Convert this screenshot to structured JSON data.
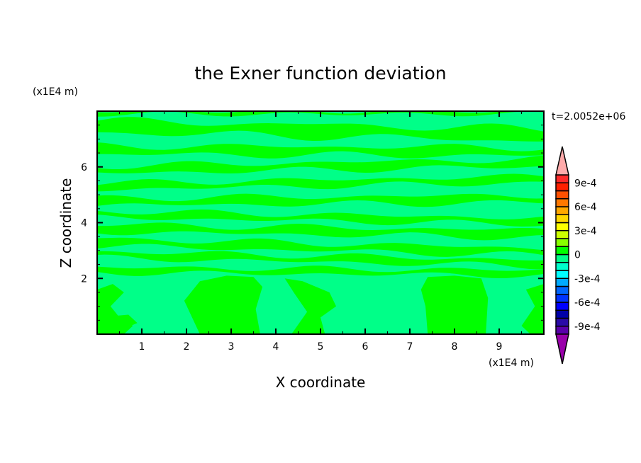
{
  "chart_data": {
    "type": "heatmap",
    "title": "the Exner function deviation",
    "xlabel": "X coordinate",
    "ylabel": "Z coordinate",
    "x_unit": "(x1E4 m)",
    "y_unit": "(x1E4 m)",
    "time_label": "t=2.0052e+06",
    "xlim": [
      0,
      10
    ],
    "ylim": [
      0,
      8
    ],
    "x_ticks": [
      1,
      2,
      3,
      4,
      5,
      6,
      7,
      8,
      9
    ],
    "y_ticks": [
      2,
      4,
      6
    ],
    "background_level": "-1e-4 to 0",
    "colorbar": {
      "levels": [
        -0.001,
        -0.0009,
        -0.0008,
        -0.0007,
        -0.0006,
        -0.0005,
        -0.0004,
        -0.0003,
        -0.0002,
        -0.0001,
        0,
        0.0001,
        0.0002,
        0.0003,
        0.0004,
        0.0005,
        0.0006,
        0.0007,
        0.0008,
        0.0009,
        0.001
      ],
      "colors": [
        "#5a00aa",
        "#2a0aa8",
        "#0000a8",
        "#0000ff",
        "#0033ff",
        "#0066ff",
        "#00aaff",
        "#00ffff",
        "#00ffcc",
        "#00ff88",
        "#00ff00",
        "#88ff00",
        "#ccff00",
        "#ffff00",
        "#ffd800",
        "#ffa800",
        "#ff7800",
        "#ff5000",
        "#ff2000",
        "#ff2a2a"
      ],
      "over_color": "#ffaaaa",
      "under_color": "#9900aa",
      "tick_labels": [
        {
          "value": 0.0009,
          "label": "9e-4"
        },
        {
          "value": 0.0006,
          "label": "6e-4"
        },
        {
          "value": 0.0003,
          "label": "3e-4"
        },
        {
          "value": 0,
          "label": "0"
        },
        {
          "value": -0.0003,
          "label": "-3e-4"
        },
        {
          "value": -0.0006,
          "label": "-6e-4"
        },
        {
          "value": -0.0009,
          "label": "-9e-4"
        }
      ]
    },
    "positive_bands": [
      {
        "z_left": 7.45,
        "z_right": 7.15,
        "width": 0.55
      },
      {
        "z_left": 6.6,
        "z_right": 6.55,
        "width": 0.4
      },
      {
        "z_left": 5.9,
        "z_right": 6.15,
        "width": 0.35
      },
      {
        "z_left": 5.3,
        "z_right": 5.55,
        "width": 0.3
      },
      {
        "z_left": 4.75,
        "z_right": 4.85,
        "width": 0.35
      },
      {
        "z_left": 4.3,
        "z_right": 4.05,
        "width": 0.3
      },
      {
        "z_left": 3.8,
        "z_right": 3.6,
        "width": 0.35
      },
      {
        "z_left": 3.3,
        "z_right": 2.95,
        "width": 0.35
      },
      {
        "z_left": 2.85,
        "z_right": 2.55,
        "width": 0.3
      },
      {
        "z_left": 2.3,
        "z_right": 2.2,
        "width": 0.25
      },
      {
        "z_left": 7.95,
        "z_right": 7.95,
        "width": 0.15
      }
    ],
    "positive_blobs": [
      [
        [
          2.3,
          0
        ],
        [
          1.95,
          1.2
        ],
        [
          2.3,
          1.9
        ],
        [
          2.9,
          2.1
        ],
        [
          3.5,
          2.05
        ],
        [
          3.7,
          1.7
        ],
        [
          3.55,
          0.9
        ],
        [
          3.65,
          0
        ]
      ],
      [
        [
          7.4,
          0
        ],
        [
          7.35,
          1.0
        ],
        [
          7.25,
          1.6
        ],
        [
          7.4,
          2.05
        ],
        [
          8.0,
          2.1
        ],
        [
          8.6,
          2.0
        ],
        [
          8.75,
          1.3
        ],
        [
          8.7,
          0
        ]
      ],
      [
        [
          0,
          0
        ],
        [
          0,
          1.6
        ],
        [
          0.35,
          1.8
        ],
        [
          0.6,
          1.5
        ],
        [
          0.3,
          1.0
        ],
        [
          0.5,
          0.6
        ],
        [
          0.8,
          0.3
        ],
        [
          0.6,
          0
        ]
      ],
      [
        [
          4.35,
          0
        ],
        [
          4.7,
          0.8
        ],
        [
          4.4,
          1.5
        ],
        [
          4.2,
          2.0
        ],
        [
          4.6,
          1.9
        ],
        [
          5.2,
          1.5
        ],
        [
          5.35,
          1.0
        ],
        [
          5.0,
          0.6
        ],
        [
          5.1,
          0
        ]
      ],
      [
        [
          9.7,
          0
        ],
        [
          9.5,
          0.3
        ],
        [
          9.8,
          1.0
        ],
        [
          9.6,
          1.6
        ],
        [
          10,
          1.8
        ],
        [
          10,
          0
        ]
      ],
      [
        [
          0,
          0.2
        ],
        [
          0,
          0.6
        ],
        [
          0.7,
          0.7
        ],
        [
          0.9,
          0.4
        ],
        [
          0.6,
          0.2
        ]
      ]
    ]
  }
}
